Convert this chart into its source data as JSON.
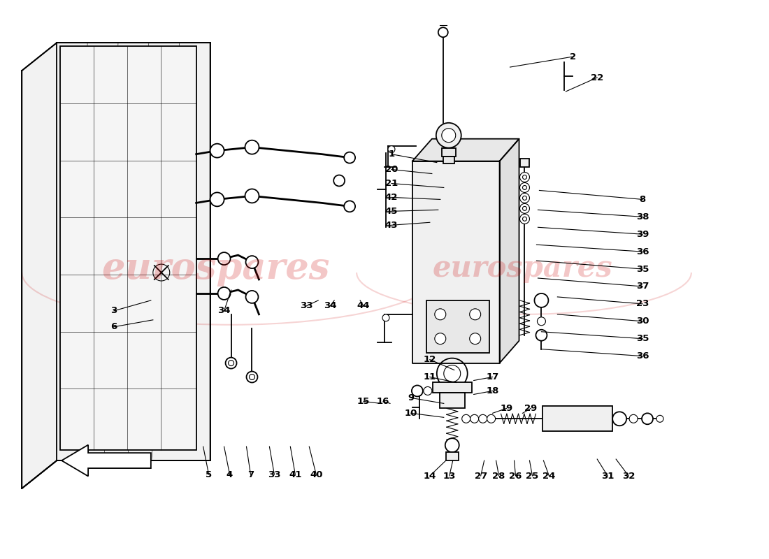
{
  "background_color": "#ffffff",
  "watermark_color": "#cc0000",
  "watermark_alpha": 0.22,
  "line_color": "#000000",
  "label_color": "#000000",
  "label_fontsize": 9.5,
  "figure_width": 11.0,
  "figure_height": 8.0
}
